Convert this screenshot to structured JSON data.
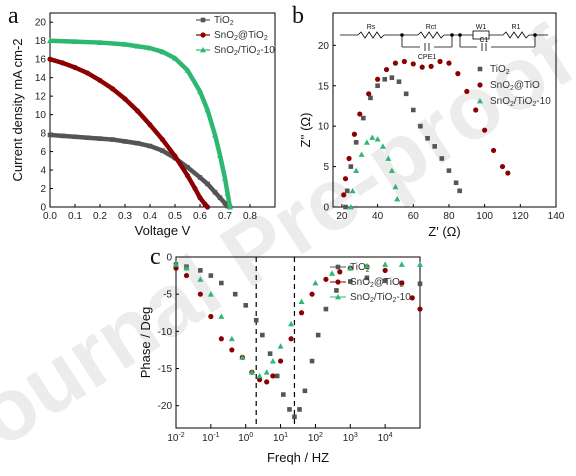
{
  "chart_data": [
    {
      "panel": "a",
      "type": "line",
      "xlabel": "Voltage V",
      "ylabel": "Current density mA cm-2",
      "xlim": [
        0,
        0.9
      ],
      "ylim": [
        0,
        21
      ],
      "xticks": [
        "0.0",
        "0.1",
        "0.2",
        "0.3",
        "0.4",
        "0.5",
        "0.6",
        "0.7",
        "0.8"
      ],
      "yticks": [
        "0",
        "2",
        "4",
        "6",
        "8",
        "10",
        "12",
        "14",
        "16",
        "18",
        "20"
      ],
      "legend_position": "top-right",
      "series": [
        {
          "name": "TiO2",
          "legend_main": "TiO",
          "legend_sub": "2",
          "legend_tail": "",
          "color": "#555555",
          "marker": "square",
          "x": [
            0,
            0.05,
            0.1,
            0.15,
            0.2,
            0.25,
            0.3,
            0.35,
            0.4,
            0.45,
            0.5,
            0.55,
            0.6,
            0.63,
            0.66,
            0.68,
            0.7,
            0.71,
            0.72
          ],
          "y": [
            7.8,
            7.7,
            7.6,
            7.5,
            7.4,
            7.3,
            7.1,
            6.9,
            6.6,
            6.1,
            5.3,
            4.3,
            3.2,
            2.5,
            1.6,
            1.0,
            0.4,
            0.1,
            0
          ]
        },
        {
          "name": "SnO2@TiO2",
          "legend_main": "SnO",
          "legend_sub": "2",
          "legend_tail": "@TiO",
          "legend_sub2": "2",
          "color": "#8b0000",
          "marker": "circle",
          "x": [
            0,
            0.05,
            0.1,
            0.15,
            0.2,
            0.25,
            0.3,
            0.35,
            0.4,
            0.45,
            0.5,
            0.55,
            0.58,
            0.6,
            0.62,
            0.63
          ],
          "y": [
            16.0,
            15.6,
            15.1,
            14.5,
            13.7,
            12.8,
            11.7,
            10.4,
            8.9,
            7.3,
            5.5,
            3.4,
            2.0,
            1.0,
            0.3,
            0
          ]
        },
        {
          "name": "SnO2/TiO2-10",
          "legend_main": "SnO",
          "legend_sub": "2",
          "legend_tail": "/TiO",
          "legend_sub2": "2",
          "legend_tail2": "-10",
          "color": "#2db872",
          "marker": "triangle",
          "x": [
            0,
            0.1,
            0.2,
            0.3,
            0.35,
            0.4,
            0.45,
            0.5,
            0.55,
            0.6,
            0.63,
            0.66,
            0.68,
            0.7,
            0.71,
            0.72
          ],
          "y": [
            18.0,
            17.9,
            17.8,
            17.6,
            17.4,
            17.2,
            16.8,
            16.1,
            14.8,
            12.5,
            10.5,
            7.8,
            5.6,
            3.1,
            1.5,
            0
          ]
        }
      ]
    },
    {
      "panel": "b",
      "type": "scatter",
      "xlabel": "Z' (Ω)",
      "ylabel": "Z'' (Ω)",
      "xlim": [
        15,
        140
      ],
      "ylim": [
        0,
        24
      ],
      "xticks": [
        "20",
        "40",
        "60",
        "80",
        "100",
        "120",
        "140"
      ],
      "yticks": [
        "0",
        "5",
        "10",
        "15",
        "20"
      ],
      "legend_position": "right",
      "circuit_labels": [
        "Rs",
        "Rct",
        "CPE1",
        "W1",
        "C1",
        "R1"
      ],
      "series": [
        {
          "name": "TiO2",
          "legend_main": "TiO",
          "legend_sub": "2",
          "legend_tail": "",
          "color": "#555555",
          "marker": "square",
          "x": [
            22,
            23,
            25,
            28,
            32,
            36,
            40,
            44,
            48,
            52,
            56,
            60,
            64,
            68,
            72,
            76,
            80,
            84,
            86
          ],
          "y": [
            0,
            2,
            5,
            8,
            11,
            13.5,
            15,
            15.8,
            16,
            15.5,
            14,
            12,
            10,
            8.5,
            7.5,
            6,
            4.5,
            3,
            2
          ]
        },
        {
          "name": "SnO2@TiO",
          "legend_main": "SnO",
          "legend_sub": "2",
          "legend_tail": "@TiO",
          "color": "#8b0000",
          "marker": "circle",
          "x": [
            21,
            22,
            24,
            27,
            30,
            35,
            40,
            45,
            50,
            55,
            60,
            65,
            70,
            75,
            80,
            85,
            90,
            95,
            100,
            105,
            110,
            113
          ],
          "y": [
            1.5,
            3.5,
            6,
            9,
            11.5,
            14,
            15.8,
            17,
            17.8,
            18,
            17.7,
            17.3,
            17.4,
            18,
            17.8,
            16.5,
            14.3,
            12,
            9.5,
            7,
            5,
            4.2
          ]
        },
        {
          "name": "SnO2/TiO2-10",
          "legend_main": "SnO",
          "legend_sub": "2",
          "legend_tail": "/TiO",
          "legend_sub2": "2",
          "legend_tail2": "-10",
          "color": "#2db872",
          "marker": "triangle",
          "x": [
            25,
            26,
            28,
            31,
            34,
            37,
            40,
            43,
            46,
            48,
            50,
            51
          ],
          "y": [
            0,
            2,
            4.5,
            6.5,
            8,
            8.6,
            8.4,
            7.5,
            6,
            4.5,
            2.5,
            1
          ]
        }
      ]
    },
    {
      "panel": "c",
      "type": "line",
      "xlabel": "Freqh / HZ",
      "ylabel": "Phase / Deg",
      "xscale": "log",
      "xlim": [
        0.01,
        100000
      ],
      "ylim": [
        -23,
        0
      ],
      "yticks": [
        "0",
        "-5",
        "-10",
        "-15",
        "-20"
      ],
      "xtick_exponents": [
        "-2",
        "-1",
        "0",
        "1",
        "2",
        "3",
        "4"
      ],
      "legend_position": "top-right",
      "dashed_lines_x": [
        2,
        25
      ],
      "series": [
        {
          "name": "TiO2",
          "legend_main": "TiO",
          "legend_sub": "2",
          "legend_tail": "",
          "color": "#555555",
          "marker": "square",
          "x": [
            0.01,
            0.02,
            0.05,
            0.1,
            0.2,
            0.5,
            1,
            2,
            3,
            5,
            8,
            12,
            18,
            25,
            35,
            50,
            80,
            120,
            200,
            400,
            1000,
            3000,
            10000,
            30000,
            100000
          ],
          "y": [
            -1,
            -1.3,
            -1.8,
            -2.5,
            -3.5,
            -5,
            -6.5,
            -8.5,
            -10.5,
            -13,
            -16,
            -18.5,
            -20.5,
            -21.5,
            -20.5,
            -18,
            -14,
            -10.5,
            -7,
            -4.5,
            -3.3,
            -2.8,
            -3.2,
            -3.5,
            -3.6
          ]
        },
        {
          "name": "SnO2@TiO2",
          "legend_main": "SnO",
          "legend_sub": "2",
          "legend_tail": "@TiO",
          "legend_sub2": "2",
          "color": "#8b0000",
          "marker": "circle",
          "x": [
            0.01,
            0.02,
            0.05,
            0.1,
            0.2,
            0.4,
            0.8,
            1.5,
            2.5,
            4,
            6,
            10,
            20,
            40,
            80,
            200,
            500,
            1000,
            3000,
            10000,
            30000,
            60000,
            100000
          ],
          "y": [
            -1.5,
            -2.5,
            -5,
            -8,
            -11,
            -12.5,
            -13.5,
            -15.5,
            -16.5,
            -16.8,
            -16,
            -14,
            -11,
            -7.5,
            -5,
            -3,
            -2,
            -1.5,
            -1.3,
            -1.8,
            -3.5,
            -5.5,
            -7
          ]
        },
        {
          "name": "SnO2/TiO2-10",
          "legend_main": "SnO",
          "legend_sub": "2",
          "legend_tail": "/TiO",
          "legend_sub2": "2",
          "legend_tail2": "-10",
          "color": "#2db872",
          "marker": "triangle",
          "x": [
            0.01,
            0.02,
            0.05,
            0.1,
            0.2,
            0.4,
            0.8,
            1.5,
            2.5,
            4,
            6,
            10,
            20,
            40,
            100,
            300,
            1000,
            3000,
            10000,
            30000,
            100000
          ],
          "y": [
            -1,
            -1.5,
            -3,
            -5,
            -8,
            -11,
            -13.5,
            -15.5,
            -16,
            -15.5,
            -14,
            -12,
            -9,
            -6,
            -3.5,
            -2.2,
            -1.5,
            -1.2,
            -1,
            -1,
            -1
          ]
        }
      ]
    }
  ],
  "watermark": "Journal Pre-proof"
}
